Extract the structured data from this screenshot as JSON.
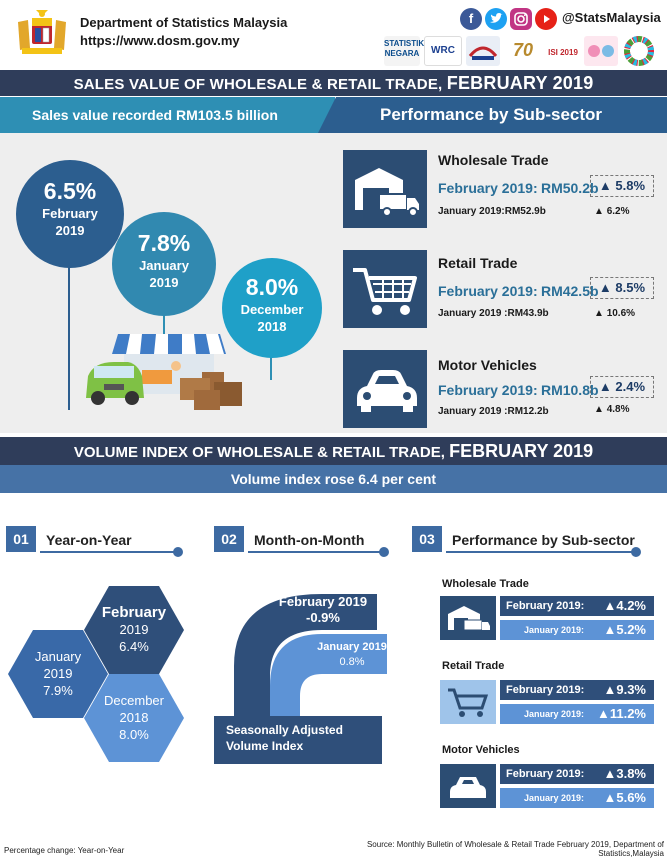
{
  "header": {
    "department": "Department of Statistics Malaysia",
    "url": "https://www.dosm.gov.my",
    "social_handle": "@StatsMalaysia",
    "social_icons": [
      "facebook-icon",
      "twitter-icon",
      "instagram-icon",
      "youtube-icon"
    ],
    "logos": [
      "STATISTIK NEGARA",
      "WRC 2019",
      "",
      "70",
      "ISI 2019",
      "",
      "SDG"
    ]
  },
  "sales": {
    "title_prefix": "SALES VALUE OF WHOLESALE & RETAIL TRADE,",
    "title_period": "FEBRUARY 2019",
    "recorded": "Sales value recorded RM103.5 billion",
    "performance_heading": "Performance by Sub-sector",
    "growth": [
      {
        "pct": "6.5%",
        "line1": "February",
        "line2": "2019"
      },
      {
        "pct": "7.8%",
        "line1": "January",
        "line2": "2019"
      },
      {
        "pct": "8.0%",
        "line1": "December",
        "line2": "2018"
      }
    ],
    "subsectors": [
      {
        "name": "Wholesale Trade",
        "feb_label": "February 2019:",
        "feb_value": "RM50.2b",
        "feb_change": "5.8%",
        "jan_label": "January 2019:",
        "jan_value": "RM52.9b",
        "jan_change": "6.2%",
        "icon": "warehouse-truck-icon"
      },
      {
        "name": "Retail Trade",
        "feb_label": "February 2019:",
        "feb_value": "RM42.5b",
        "feb_change": "8.5%",
        "jan_label": "January 2019 :",
        "jan_value": "RM43.9b",
        "jan_change": "10.6%",
        "icon": "shopping-cart-icon"
      },
      {
        "name": "Motor Vehicles",
        "feb_label": "February 2019:",
        "feb_value": "RM10.8b",
        "feb_change": "2.4%",
        "jan_label": "January 2019 :",
        "jan_value": "RM12.2b",
        "jan_change": "4.8%",
        "icon": "car-icon"
      }
    ]
  },
  "volume": {
    "title_prefix": "VOLUME INDEX OF WHOLESALE & RETAIL TRADE,",
    "title_period": "FEBRUARY 2019",
    "headline": "Volume index rose 6.4 per cent",
    "steps": [
      {
        "num": "01",
        "title": "Year-on-Year"
      },
      {
        "num": "02",
        "title": "Month-on-Month"
      },
      {
        "num": "03",
        "title": "Performance by Sub-sector"
      }
    ],
    "yoy": [
      {
        "line1": "February",
        "line2": "2019",
        "value": "6.4%"
      },
      {
        "line1": "January",
        "line2": "2019",
        "value": "7.9%"
      },
      {
        "line1": "December",
        "line2": "2018",
        "value": "8.0%"
      }
    ],
    "mom": {
      "feb_label": "February 2019",
      "feb_value": "-0.9%",
      "jan_label": "January 2019",
      "jan_value": "0.8%",
      "caption_line1": "Seasonally Adjusted",
      "caption_line2": "Volume Index"
    },
    "subsectors": [
      {
        "name": "Wholesale Trade",
        "feb_label": "February 2019:",
        "feb_change": "4.2%",
        "jan_label": "January 2019:",
        "jan_change": "5.2%",
        "icon": "warehouse-truck-icon"
      },
      {
        "name": "Retail Trade",
        "feb_label": "February 2019:",
        "feb_change": "9.3%",
        "jan_label": "January 2019:",
        "jan_change": "11.2%",
        "icon": "shopping-cart-icon"
      },
      {
        "name": "Motor Vehicles",
        "feb_label": "February 2019:",
        "feb_change": "3.8%",
        "jan_label": "January 2019:",
        "jan_change": "5.6%",
        "icon": "car-icon"
      }
    ],
    "up_arrow": "▲"
  },
  "footer": {
    "note": "Percentage change: Year-on-Year",
    "source": "Source: Monthly Bulletin of Wholesale & Retail Trade February 2019, Department of Statistics,Malaysia"
  },
  "colors": {
    "dark_navy": "#2f3d5a",
    "teal": "#2e8fb4",
    "blue": "#3e6aa2",
    "icon_bg": "#2c4d73",
    "panel_bg": "#eeeeee"
  }
}
